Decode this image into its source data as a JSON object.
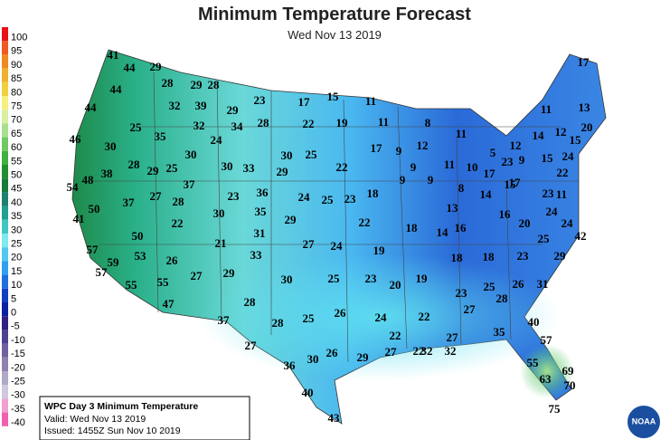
{
  "title": "Minimum Temperature Forecast",
  "subtitle": "Wed Nov 13 2019",
  "legend": {
    "labels": [
      100,
      95,
      90,
      85,
      80,
      75,
      70,
      65,
      60,
      55,
      50,
      45,
      40,
      35,
      30,
      25,
      20,
      15,
      10,
      5,
      0,
      -5,
      -10,
      -15,
      -20,
      -25,
      -30,
      -35,
      -40
    ],
    "colors": [
      "#e8101a",
      "#f05a20",
      "#f08a20",
      "#f0b030",
      "#f0d040",
      "#f5f080",
      "#d8f0a0",
      "#a8e090",
      "#70c860",
      "#40b040",
      "#209030",
      "#1a7a3a",
      "#208070",
      "#20a090",
      "#40c8c0",
      "#80e8f0",
      "#50c8f0",
      "#30a0f0",
      "#2070e0",
      "#1040c0",
      "#0a20a0",
      "#302080",
      "#504090",
      "#7060a0",
      "#9080b0",
      "#b0a8c8",
      "#d0c8e0",
      "#f0a0d0",
      "#f060b0"
    ]
  },
  "info": {
    "heading": "WPC Day 3 Minimum Temperature",
    "valid": "Valid: Wed Nov 13 2019",
    "issued": "Issued: 1455Z Sun Nov 10 2019"
  },
  "logo": "NOAA",
  "temperatures": [
    41,
    44,
    29,
    44,
    28,
    29,
    28,
    23,
    17,
    15,
    11,
    17,
    44,
    32,
    39,
    29,
    11,
    13,
    25,
    32,
    34,
    28,
    22,
    19,
    11,
    8,
    11,
    20,
    46,
    35,
    24,
    14,
    12,
    15,
    30,
    30,
    30,
    25,
    17,
    12,
    12,
    5,
    28,
    30,
    33,
    29,
    22,
    9,
    9,
    11,
    10,
    17,
    23,
    9,
    15,
    24,
    38,
    29,
    25,
    17,
    22,
    54,
    48,
    37,
    9,
    9,
    8,
    14,
    15,
    23,
    37,
    27,
    28,
    23,
    36,
    24,
    25,
    23,
    18,
    11,
    50,
    30,
    35,
    29,
    13,
    16,
    20,
    24,
    41,
    22,
    22,
    18,
    14,
    16,
    24,
    50,
    21,
    31,
    27,
    24,
    19,
    25,
    42,
    57,
    53,
    26,
    33,
    18,
    18,
    23,
    29,
    59,
    57,
    27,
    29,
    30,
    25,
    23,
    20,
    19,
    55,
    55,
    23,
    25,
    28,
    26,
    31,
    47,
    28,
    27,
    37,
    28,
    25,
    26,
    24,
    22,
    40,
    27,
    22,
    32,
    32,
    27,
    35,
    57,
    30,
    26,
    29,
    27,
    22,
    36,
    55,
    69,
    63,
    70,
    40,
    43,
    75
  ]
}
